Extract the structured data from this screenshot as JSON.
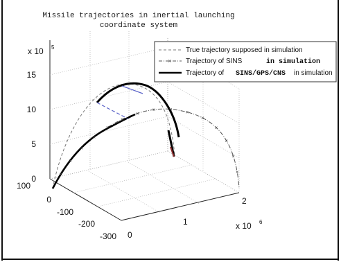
{
  "chart_data": {
    "type": "line",
    "title_lines": [
      "Missile trajectories in inertial launching",
      "coordinate system"
    ],
    "axes": {
      "x": {
        "ticks": [
          "0",
          "1",
          "2"
        ],
        "multiplier": "x 10",
        "multiplier_exp": "6"
      },
      "y": {
        "ticks": [
          "-300",
          "-200",
          "-100",
          "0",
          "100"
        ]
      },
      "z": {
        "ticks": [
          "0",
          "5",
          "10",
          "15"
        ],
        "multiplier": "x 10",
        "multiplier_exp": "5",
        "lim": [
          0,
          15
        ]
      }
    },
    "legend": {
      "placement": "top-right",
      "entries": [
        {
          "parts": [
            {
              "text": "True trajectory supposed in simulation",
              "bold": false
            }
          ],
          "style": "dashed",
          "color": "#777777"
        },
        {
          "parts": [
            {
              "text": "Trajectory of SINS",
              "bold": false
            },
            {
              "text": "in simulation",
              "bold": true
            }
          ],
          "style": "dash-dot-x",
          "color": "#555555"
        },
        {
          "parts": [
            {
              "text": "Trajectory of ",
              "bold": false
            },
            {
              "text": "SINS/GPS/CNS",
              "bold": true
            },
            {
              "text": "in simulation",
              "bold": false
            }
          ],
          "style": "solid-thick",
          "color": "#000000"
        }
      ]
    },
    "series": [
      {
        "name": "True trajectory supposed in simulation",
        "x": [
          0,
          0.1,
          0.2,
          0.32,
          0.45,
          0.6,
          0.75,
          0.9,
          1.05
        ],
        "y": [
          0,
          3,
          8,
          15,
          23,
          32,
          40,
          48,
          55
        ],
        "z": [
          0,
          3.5,
          6.5,
          9.2,
          11.3,
          12.8,
          13.2,
          12.5,
          10.5
        ]
      },
      {
        "name": "Trajectory of SINS",
        "x": [
          0,
          0.3,
          0.6,
          0.9,
          1.2,
          1.5,
          1.75,
          1.95,
          2.0
        ],
        "y": [
          0,
          -40,
          -90,
          -140,
          -190,
          -230,
          -265,
          -290,
          -300
        ],
        "z": [
          0,
          4.5,
          7.5,
          9.2,
          9.8,
          9.0,
          7.0,
          3.5,
          0
        ]
      },
      {
        "name": "Trajectory of SINS/GPS/CNS",
        "x": [
          0,
          0.12,
          0.25,
          0.4,
          0.55,
          0.7,
          0.85,
          1.0,
          1.1
        ],
        "y": [
          0,
          -20,
          -45,
          -70,
          -95,
          -120,
          -150,
          -175,
          -190
        ],
        "z": [
          0,
          3.2,
          6.2,
          9.0,
          11.0,
          12.6,
          13.1,
          12.0,
          10.5
        ]
      }
    ]
  }
}
